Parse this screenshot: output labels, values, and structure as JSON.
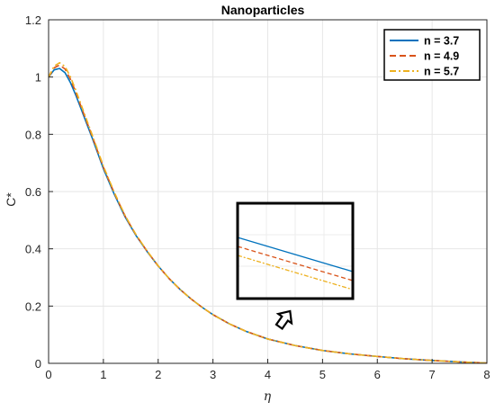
{
  "chart_data": {
    "type": "line",
    "title": "Nanoparticles",
    "xlabel": "η",
    "ylabel": "C*",
    "xlim": [
      0,
      8
    ],
    "ylim": [
      0,
      1.2
    ],
    "xticks": [
      0,
      1,
      2,
      3,
      4,
      5,
      6,
      7,
      8
    ],
    "yticks": [
      0,
      0.2,
      0.4,
      0.6,
      0.8,
      1,
      1.2
    ],
    "grid": true,
    "legend_position": "top-right",
    "x": [
      0,
      0.1,
      0.2,
      0.3,
      0.4,
      0.5,
      0.6,
      0.7,
      0.8,
      1.0,
      1.2,
      1.4,
      1.6,
      1.8,
      2.0,
      2.2,
      2.4,
      2.6,
      2.8,
      3.0,
      3.3,
      3.6,
      4.0,
      4.5,
      5.0,
      5.5,
      6.0,
      6.5,
      7.0,
      7.5,
      8.0
    ],
    "series": [
      {
        "name": "n = 3.7",
        "color": "#0072BD",
        "dash": "solid",
        "values": [
          1.0,
          1.025,
          1.03,
          1.015,
          0.98,
          0.935,
          0.885,
          0.835,
          0.785,
          0.68,
          0.59,
          0.51,
          0.445,
          0.39,
          0.34,
          0.296,
          0.258,
          0.225,
          0.196,
          0.17,
          0.138,
          0.112,
          0.085,
          0.062,
          0.045,
          0.033,
          0.024,
          0.016,
          0.01,
          0.005,
          0.001
        ]
      },
      {
        "name": "n = 4.9",
        "color": "#D95319",
        "dash": "dashed",
        "values": [
          1.0,
          1.032,
          1.042,
          1.028,
          0.992,
          0.945,
          0.893,
          0.842,
          0.791,
          0.685,
          0.594,
          0.513,
          0.447,
          0.391,
          0.34,
          0.296,
          0.258,
          0.225,
          0.196,
          0.17,
          0.138,
          0.112,
          0.085,
          0.062,
          0.045,
          0.033,
          0.024,
          0.016,
          0.01,
          0.005,
          0.001
        ]
      },
      {
        "name": "n = 5.7",
        "color": "#EDB120",
        "dash": "dashdot",
        "values": [
          1.0,
          1.038,
          1.05,
          1.037,
          1.0,
          0.952,
          0.9,
          0.848,
          0.796,
          0.689,
          0.597,
          0.515,
          0.448,
          0.392,
          0.341,
          0.296,
          0.258,
          0.225,
          0.196,
          0.17,
          0.138,
          0.112,
          0.085,
          0.062,
          0.045,
          0.033,
          0.024,
          0.016,
          0.01,
          0.005,
          0.001
        ]
      }
    ],
    "inset": {
      "description_markers": true,
      "lines_offsets": [
        0,
        1,
        2
      ]
    }
  }
}
